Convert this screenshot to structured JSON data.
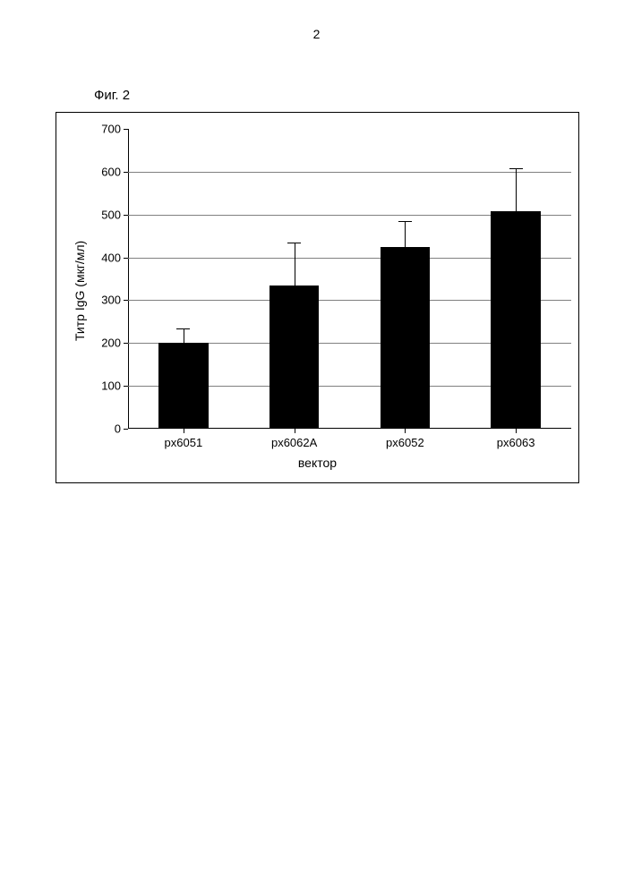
{
  "page_number": "2",
  "figure_label": "Фиг. 2",
  "chart": {
    "type": "bar",
    "ylabel": "Титр IgG (мкг/мл)",
    "xlabel": "вектор",
    "label_fontsize": 14,
    "tick_fontsize": 13,
    "categories": [
      "px6051",
      "px6062A",
      "px6052",
      "px6063"
    ],
    "values": [
      200,
      335,
      425,
      508
    ],
    "errors": [
      35,
      100,
      60,
      100
    ],
    "ylim": [
      0,
      700
    ],
    "ytick_step": 100,
    "bar_color": "#000000",
    "background_color": "#ffffff",
    "grid_color": "#808080",
    "axis_color": "#000000",
    "error_bar_color": "#000000",
    "bar_width": 0.45,
    "error_cap_width": 0.12
  }
}
